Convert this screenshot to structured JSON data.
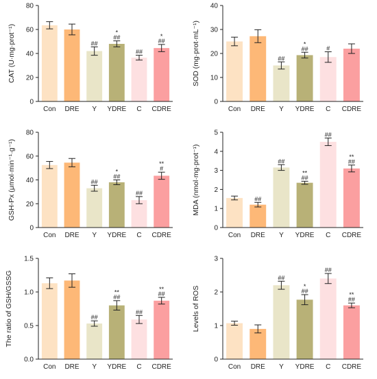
{
  "colors": {
    "Con": "#fde2c3",
    "DRE": "#fdb877",
    "Y": "#e9e5c8",
    "YDRE": "#b8b177",
    "C": "#fde0e1",
    "CDRE": "#fb9fa0"
  },
  "chart_data": [
    {
      "type": "bar",
      "categories": [
        "Con",
        "DRE",
        "Y",
        "YDRE",
        "C",
        "CDRE"
      ],
      "values": [
        63.5,
        60,
        42,
        48,
        36.5,
        44.5
      ],
      "errors": [
        3,
        4.5,
        3.5,
        2.5,
        2,
        3
      ],
      "annotations": [
        "",
        "",
        "##",
        "##|*",
        "##",
        "##|*"
      ],
      "ylabel": "CAT (U·mg·prot⁻¹)",
      "ylim": [
        0,
        80
      ],
      "yticks": [
        0,
        20,
        40,
        60,
        80
      ],
      "ytick_labels": [
        "0",
        "20",
        "40",
        "60",
        "80"
      ]
    },
    {
      "type": "bar",
      "categories": [
        "Con",
        "DRE",
        "Y",
        "YDRE",
        "C",
        "CDRE"
      ],
      "values": [
        25,
        27.2,
        15,
        19.3,
        18.5,
        22
      ],
      "errors": [
        1.8,
        2.7,
        1.5,
        1.2,
        2.2,
        2
      ],
      "annotations": [
        "",
        "",
        "##",
        "##|*",
        "#",
        ""
      ],
      "ylabel": "SOD (mg·prot·mL⁻¹)",
      "ylim": [
        0,
        40
      ],
      "yticks": [
        0,
        10,
        20,
        30,
        40
      ],
      "ytick_labels": [
        "0",
        "10",
        "20",
        "30",
        "40"
      ]
    },
    {
      "type": "bar",
      "categories": [
        "Con",
        "DRE",
        "Y",
        "YDRE",
        "C",
        "CDRE"
      ],
      "values": [
        52.5,
        54.5,
        33,
        38,
        23,
        43.5
      ],
      "errors": [
        3,
        3.5,
        2.5,
        2,
        3,
        3
      ],
      "annotations": [
        "",
        "",
        "##",
        "##|*",
        "##",
        "#|**"
      ],
      "ylabel": "GSH-Px (μmol·min⁻¹·g⁻¹)",
      "ylim": [
        0,
        80
      ],
      "yticks": [
        0,
        20,
        40,
        60,
        80
      ],
      "ytick_labels": [
        "0",
        "20",
        "40",
        "60",
        "80"
      ]
    },
    {
      "type": "bar",
      "categories": [
        "Con",
        "DRE",
        "Y",
        "YDRE",
        "C",
        "CDRE"
      ],
      "values": [
        1.55,
        1.2,
        3.15,
        2.35,
        4.5,
        3.1
      ],
      "errors": [
        0.1,
        0.12,
        0.15,
        0.08,
        0.2,
        0.18
      ],
      "annotations": [
        "",
        "##",
        "##",
        "##|**",
        "##",
        "##|**"
      ],
      "ylabel": "MDA (nmol·mg·prot⁻¹)",
      "ylim": [
        0,
        5
      ],
      "yticks": [
        0,
        1,
        2,
        3,
        4,
        5
      ],
      "ytick_labels": [
        "0",
        "1",
        "2",
        "3",
        "4",
        "5"
      ]
    },
    {
      "type": "bar",
      "categories": [
        "Con",
        "DRE",
        "Y",
        "YDRE",
        "C",
        "CDRE"
      ],
      "values": [
        1.13,
        1.17,
        0.53,
        0.8,
        0.59,
        0.87
      ],
      "errors": [
        0.08,
        0.1,
        0.04,
        0.07,
        0.06,
        0.05
      ],
      "annotations": [
        "",
        "",
        "##",
        "##|**",
        "##",
        "##|**"
      ],
      "ylabel": "The ratio of GSH/GSSG",
      "ylim": [
        0,
        1.5
      ],
      "yticks": [
        0,
        0.5,
        1,
        1.5
      ],
      "ytick_labels": [
        "0.0",
        "0.5",
        "1.0",
        "1.5"
      ]
    },
    {
      "type": "bar",
      "categories": [
        "Con",
        "DRE",
        "Y",
        "YDRE",
        "C",
        "CDRE"
      ],
      "values": [
        1.07,
        0.9,
        2.2,
        1.77,
        2.4,
        1.6
      ],
      "errors": [
        0.06,
        0.12,
        0.12,
        0.15,
        0.15,
        0.07
      ],
      "annotations": [
        "",
        "",
        "##",
        "##|*",
        "##",
        "##|**"
      ],
      "ylabel": "Levels of ROS",
      "ylim": [
        0,
        3
      ],
      "yticks": [
        0,
        1,
        2,
        3
      ],
      "ytick_labels": [
        "0",
        "1",
        "2",
        "3"
      ]
    }
  ]
}
